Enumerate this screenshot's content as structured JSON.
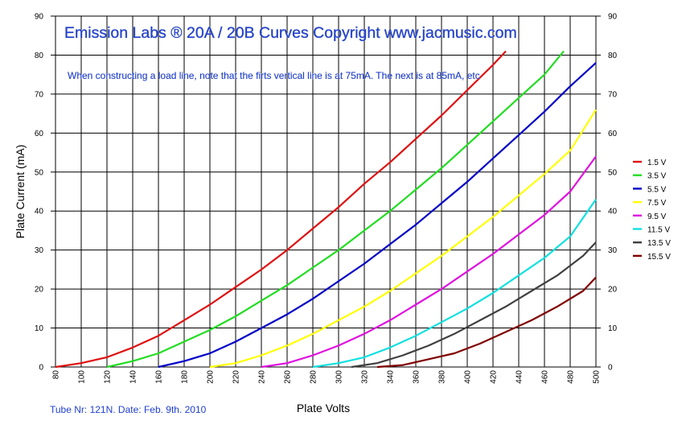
{
  "chart_data": {
    "type": "line",
    "title": "Emission Labs ®  20A / 20B Curves   Copyright www.jacmusic.com",
    "note": "When constructing a load line, note that the firts vertical line is at 75mA.  The next is at 85mA, etc",
    "footer": "Tube Nr: 121N.  Date: Feb. 9th. 2010",
    "xlabel": "Plate Volts",
    "ylabel": "Plate Current (mA)",
    "xlim": [
      80,
      500
    ],
    "ylim": [
      0,
      90
    ],
    "x_ticks": [
      80,
      100,
      120,
      140,
      160,
      180,
      200,
      220,
      240,
      260,
      280,
      300,
      320,
      340,
      360,
      380,
      400,
      420,
      440,
      460,
      480,
      500
    ],
    "x_tick_labels": [
      "80",
      "100",
      "120",
      "140",
      "160",
      "180",
      "200",
      "220",
      "240",
      "260",
      "280",
      "300",
      "320",
      "340",
      "360",
      "380",
      "400",
      "420",
      "440",
      "460",
      "480",
      "500"
    ],
    "y_ticks": [
      0,
      10,
      20,
      30,
      40,
      50,
      60,
      70,
      80,
      90
    ],
    "y_tick_labels": [
      "0",
      "10",
      "20",
      "30",
      "40",
      "50",
      "60",
      "70",
      "80",
      "90"
    ],
    "grid": true,
    "legend_position": "right",
    "series": [
      {
        "name": "1.5 V",
        "color": "#e01010",
        "points": [
          [
            80,
            0
          ],
          [
            100,
            1
          ],
          [
            120,
            2.5
          ],
          [
            140,
            5
          ],
          [
            160,
            8
          ],
          [
            180,
            12
          ],
          [
            200,
            16
          ],
          [
            220,
            20.5
          ],
          [
            240,
            25
          ],
          [
            260,
            30
          ],
          [
            280,
            35.5
          ],
          [
            300,
            41
          ],
          [
            320,
            47
          ],
          [
            340,
            52.5
          ],
          [
            360,
            58.5
          ],
          [
            380,
            64.5
          ],
          [
            400,
            71
          ],
          [
            420,
            77.5
          ],
          [
            430,
            81
          ]
        ]
      },
      {
        "name": "3.5 V",
        "color": "#22dd22",
        "points": [
          [
            120,
            0
          ],
          [
            140,
            1.5
          ],
          [
            160,
            3.5
          ],
          [
            180,
            6.5
          ],
          [
            200,
            9.5
          ],
          [
            220,
            13
          ],
          [
            240,
            17
          ],
          [
            260,
            21
          ],
          [
            280,
            25.5
          ],
          [
            300,
            30
          ],
          [
            320,
            35
          ],
          [
            340,
            40
          ],
          [
            360,
            45.5
          ],
          [
            380,
            51
          ],
          [
            400,
            57
          ],
          [
            420,
            63
          ],
          [
            440,
            69
          ],
          [
            460,
            75
          ],
          [
            475,
            81
          ]
        ]
      },
      {
        "name": "5.5 V",
        "color": "#0000c8",
        "points": [
          [
            160,
            0
          ],
          [
            180,
            1.5
          ],
          [
            200,
            3.5
          ],
          [
            220,
            6.5
          ],
          [
            240,
            10
          ],
          [
            260,
            13.5
          ],
          [
            280,
            17.5
          ],
          [
            300,
            22
          ],
          [
            320,
            26.5
          ],
          [
            340,
            31.5
          ],
          [
            360,
            36.5
          ],
          [
            380,
            42
          ],
          [
            400,
            47.5
          ],
          [
            420,
            53.5
          ],
          [
            440,
            59.5
          ],
          [
            460,
            65.5
          ],
          [
            480,
            72
          ],
          [
            500,
            78
          ]
        ]
      },
      {
        "name": "7.5 V",
        "color": "#ffff00",
        "points": [
          [
            200,
            0
          ],
          [
            220,
            1
          ],
          [
            240,
            3
          ],
          [
            260,
            5.5
          ],
          [
            280,
            8.5
          ],
          [
            300,
            12
          ],
          [
            320,
            15.5
          ],
          [
            340,
            19.5
          ],
          [
            360,
            24
          ],
          [
            380,
            28.5
          ],
          [
            400,
            33.5
          ],
          [
            420,
            38.5
          ],
          [
            440,
            44
          ],
          [
            460,
            49.5
          ],
          [
            480,
            55.5
          ],
          [
            500,
            66
          ]
        ]
      },
      {
        "name": "9.5 V",
        "color": "#e010e0",
        "points": [
          [
            240,
            0
          ],
          [
            260,
            1
          ],
          [
            280,
            3
          ],
          [
            300,
            5.5
          ],
          [
            320,
            8.5
          ],
          [
            340,
            12
          ],
          [
            360,
            16
          ],
          [
            380,
            20
          ],
          [
            400,
            24.5
          ],
          [
            420,
            29
          ],
          [
            440,
            34
          ],
          [
            460,
            39
          ],
          [
            480,
            45
          ],
          [
            500,
            54
          ]
        ]
      },
      {
        "name": "11.5 V",
        "color": "#10e0e0",
        "points": [
          [
            280,
            0
          ],
          [
            300,
            1
          ],
          [
            320,
            2.5
          ],
          [
            340,
            5
          ],
          [
            360,
            8
          ],
          [
            380,
            11.5
          ],
          [
            400,
            15
          ],
          [
            420,
            19
          ],
          [
            440,
            23.5
          ],
          [
            460,
            28
          ],
          [
            480,
            33.5
          ],
          [
            500,
            43
          ]
        ]
      },
      {
        "name": "13.5 V",
        "color": "#404040",
        "points": [
          [
            310,
            0
          ],
          [
            330,
            1
          ],
          [
            350,
            3
          ],
          [
            370,
            5.5
          ],
          [
            390,
            8.5
          ],
          [
            410,
            12
          ],
          [
            430,
            15.5
          ],
          [
            450,
            19.5
          ],
          [
            470,
            23.5
          ],
          [
            490,
            28.5
          ],
          [
            500,
            32
          ]
        ]
      },
      {
        "name": "15.5 V",
        "color": "#800000",
        "points": [
          [
            330,
            0
          ],
          [
            350,
            0.5
          ],
          [
            370,
            2
          ],
          [
            390,
            3.5
          ],
          [
            410,
            6
          ],
          [
            430,
            9
          ],
          [
            450,
            12
          ],
          [
            470,
            15.5
          ],
          [
            490,
            19.5
          ],
          [
            500,
            23
          ]
        ]
      }
    ]
  }
}
